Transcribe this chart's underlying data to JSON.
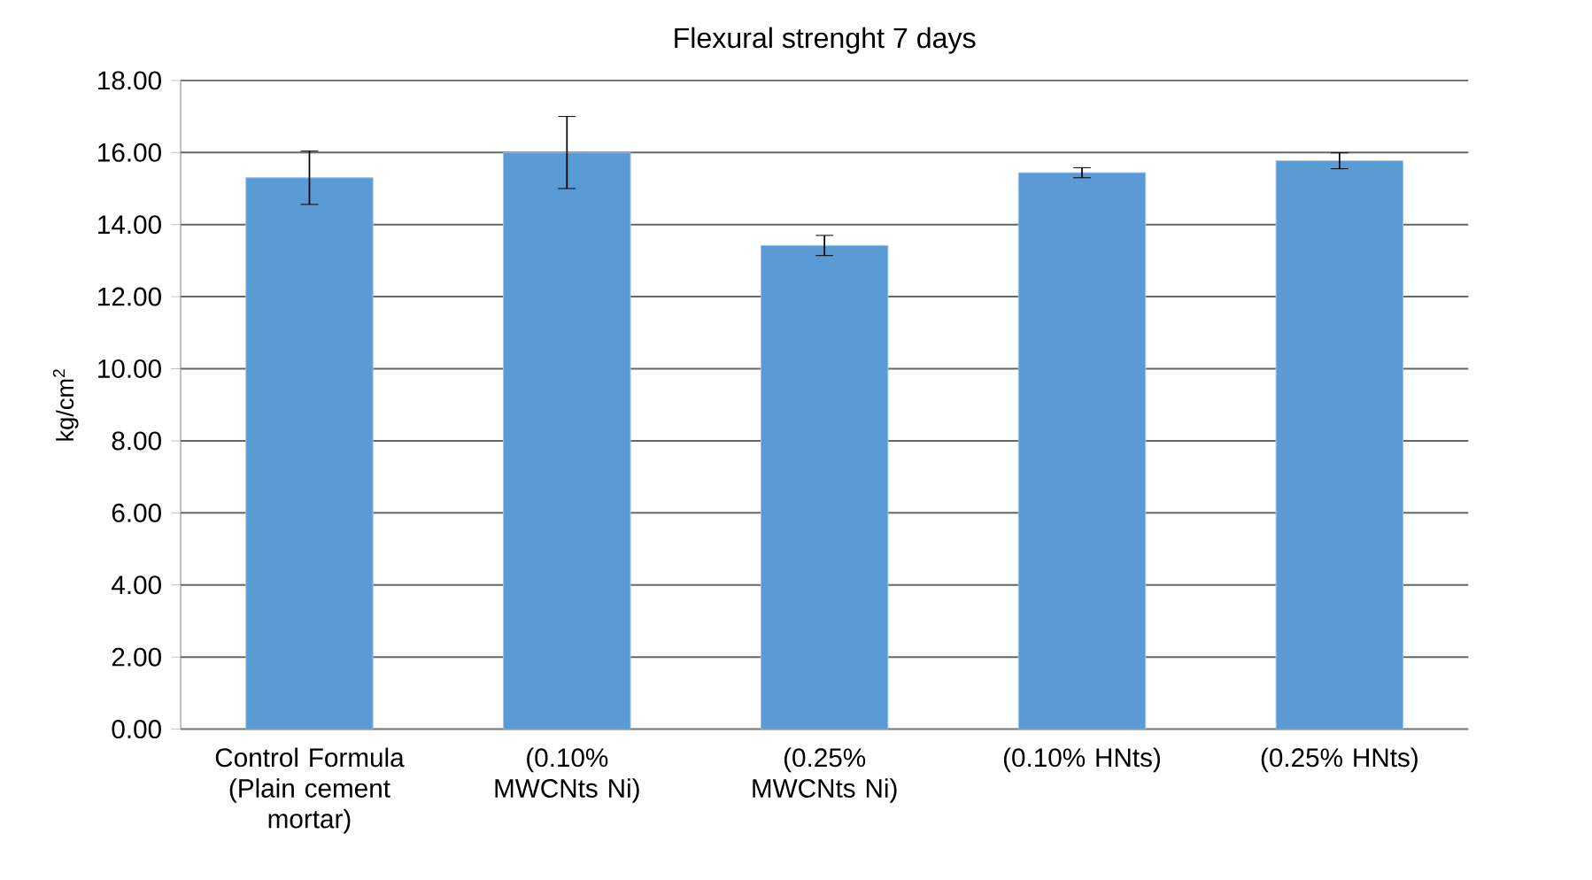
{
  "chart_data": {
    "type": "bar",
    "title": "Flexural strenght 7 days",
    "ylabel": "kg/cm$^{2}$",
    "categories": [
      "Control Formula (Plain cement mortar)",
      "(0.10% MWCNts Ni)",
      "(0.25% MWCNts Ni)",
      "(0.10% HNts)",
      "(0.25% HNts)"
    ],
    "values": [
      15.3,
      16.0,
      13.42,
      15.44,
      15.77
    ],
    "errors": [
      0.74,
      1.0,
      0.28,
      0.14,
      0.22
    ],
    "color": "#5b9bd5",
    "ylim": [
      0,
      18
    ],
    "yticks": [
      {
        "value": 0,
        "label": "0.00"
      },
      {
        "value": 2,
        "label": "2.00"
      },
      {
        "value": 4,
        "label": "4.00"
      },
      {
        "value": 6,
        "label": "6.00"
      },
      {
        "value": 8,
        "label": "8.00"
      },
      {
        "value": 10,
        "label": "10.00"
      },
      {
        "value": 12,
        "label": "12.00"
      },
      {
        "value": 14,
        "label": "14.00"
      },
      {
        "value": 16,
        "label": "16.00"
      },
      {
        "value": 18,
        "label": "18.00"
      }
    ],
    "grid": "y"
  }
}
